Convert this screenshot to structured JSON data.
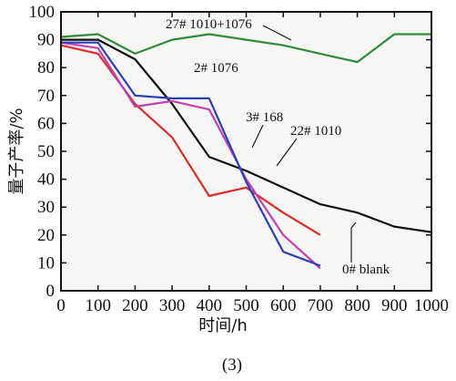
{
  "chart_data": {
    "type": "line",
    "xlabel": "时间/h",
    "ylabel": "量子产率/%",
    "caption": "(3)",
    "xlim": [
      0,
      1000
    ],
    "ylim": [
      0,
      100
    ],
    "xticks": [
      "0",
      "100",
      "200",
      "300",
      "400",
      "500",
      "600",
      "700",
      "800",
      "900",
      "1000"
    ],
    "yticks": [
      "0",
      "10",
      "20",
      "30",
      "40",
      "50",
      "60",
      "70",
      "80",
      "90",
      "100"
    ],
    "grid": false,
    "series": [
      {
        "name": "27# 1010+1076",
        "color": "#2e8b3a",
        "x": [
          0,
          100,
          200,
          300,
          400,
          500,
          600,
          700,
          800,
          900,
          1000
        ],
        "y": [
          91,
          92,
          85,
          90,
          92,
          90,
          88,
          85,
          82,
          92,
          92
        ]
      },
      {
        "name": "2# 1076",
        "color": "#2b3fb8",
        "x": [
          0,
          100,
          200,
          300,
          400,
          500,
          600,
          700
        ],
        "y": [
          89,
          89,
          70,
          69,
          69,
          39,
          14,
          9
        ]
      },
      {
        "name": "3# 168",
        "color": "#c040b0",
        "x": [
          0,
          100,
          200,
          300,
          400,
          500,
          600,
          700
        ],
        "y": [
          89,
          87,
          66,
          68,
          65,
          40,
          20,
          8
        ]
      },
      {
        "name": "22# 1010",
        "color": "#e02a2a",
        "x": [
          0,
          100,
          200,
          300,
          400,
          500,
          600,
          700
        ],
        "y": [
          88,
          85,
          67,
          55,
          34,
          37,
          28,
          20
        ]
      },
      {
        "name": "0# blank",
        "color": "#111111",
        "x": [
          0,
          100,
          200,
          300,
          400,
          500,
          600,
          700,
          800,
          900,
          1000
        ],
        "y": [
          90,
          90,
          83,
          67,
          48,
          43,
          37,
          31,
          28,
          23,
          21
        ]
      }
    ]
  }
}
